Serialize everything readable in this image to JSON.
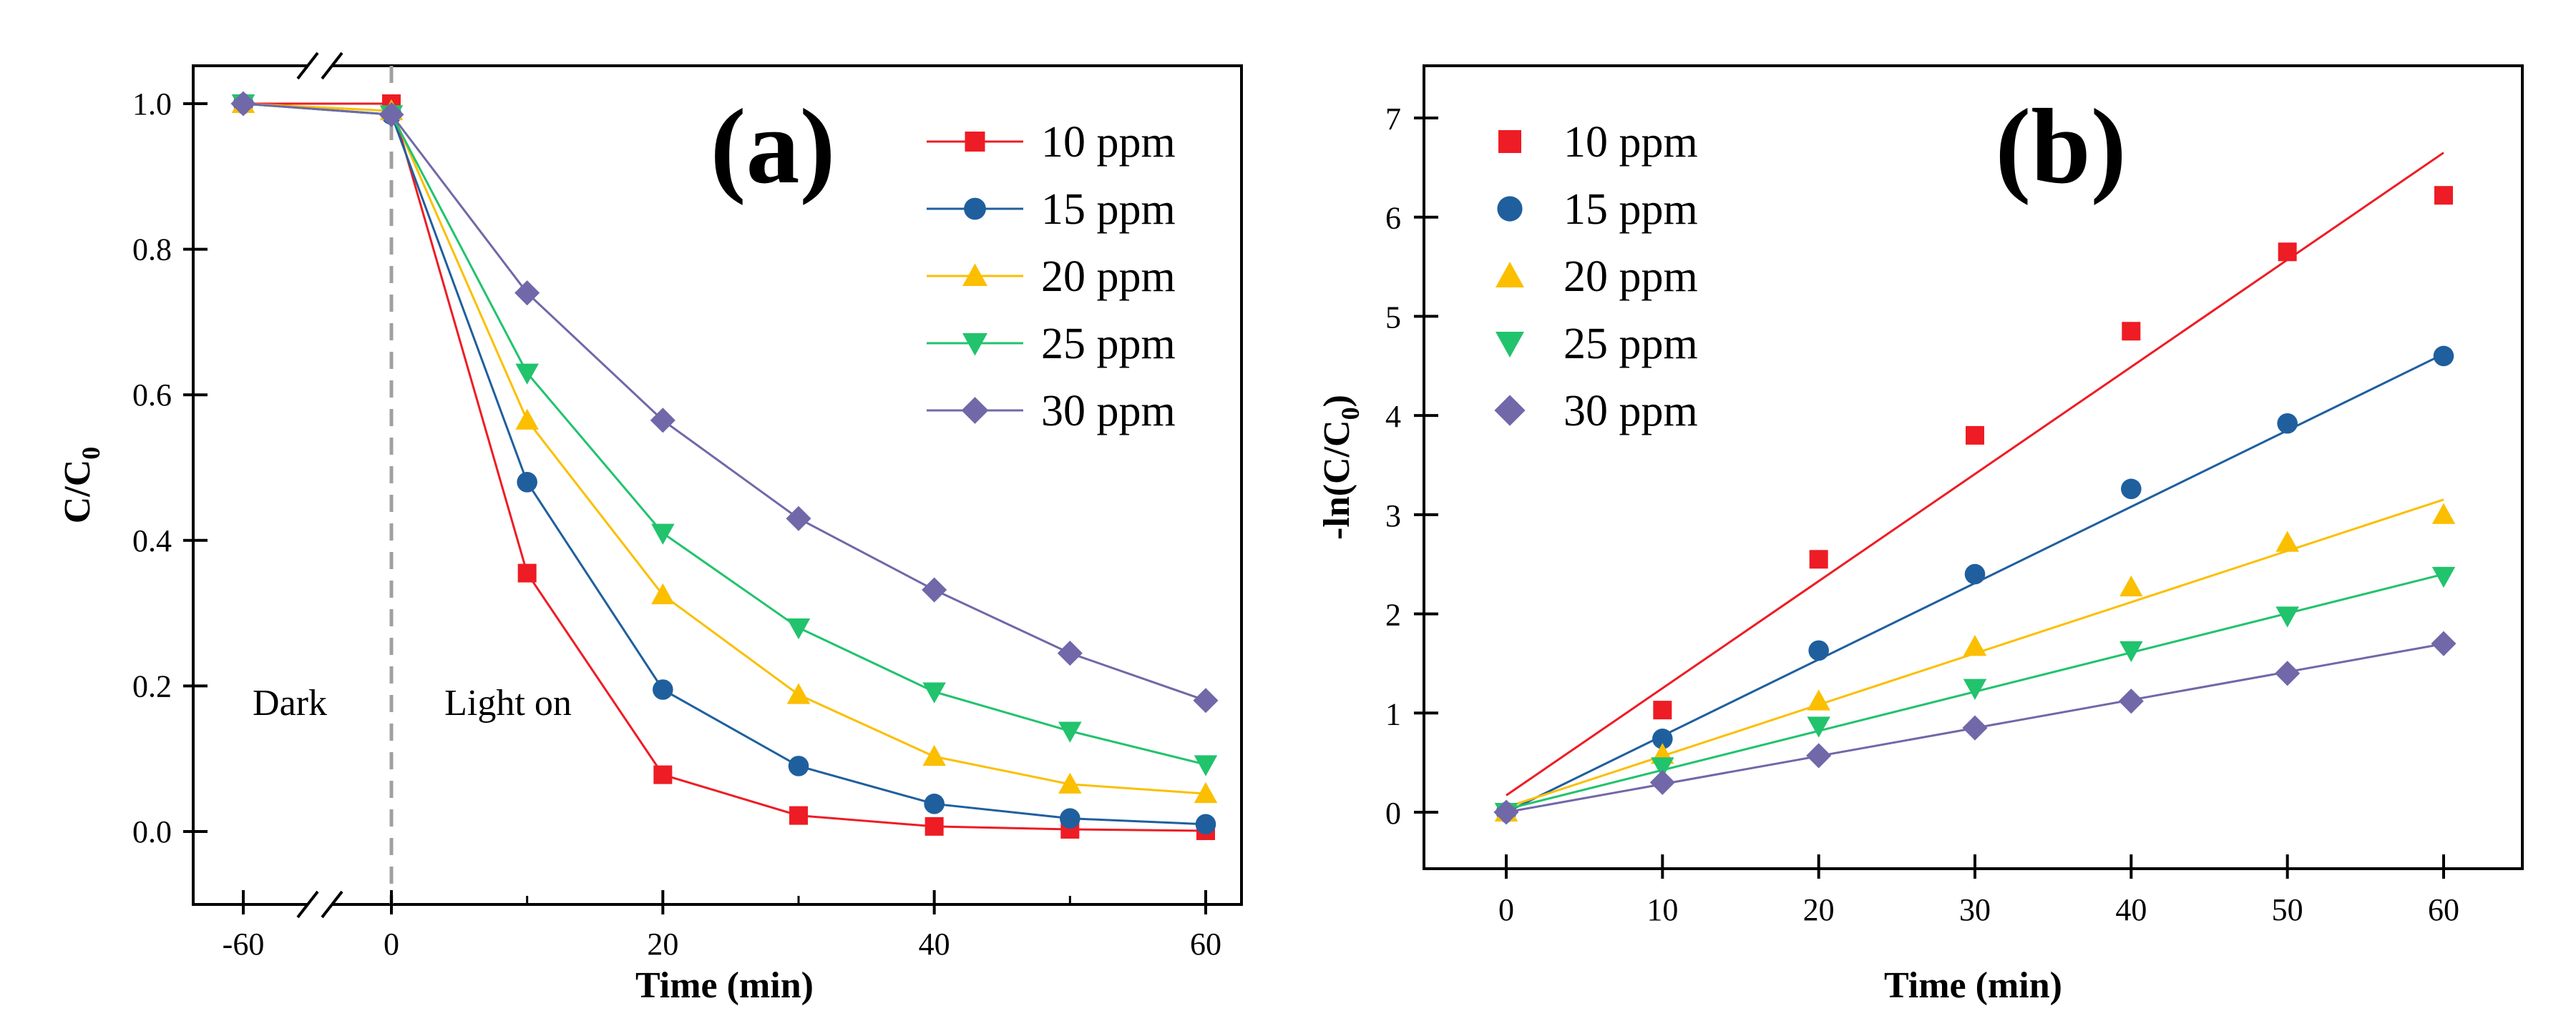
{
  "chart_data": [
    {
      "panel": "(a)",
      "type": "line",
      "xlabel": "Time (min)",
      "ylabel": "C/C0",
      "ylabel_main": "C/C",
      "ylabel_sub": "0",
      "x": [
        -60,
        0,
        10,
        20,
        30,
        40,
        50,
        60
      ],
      "x_ticks": [
        "-60",
        "0",
        "20",
        "40",
        "60"
      ],
      "y_ticks": [
        "0.0",
        "0.2",
        "0.4",
        "0.6",
        "0.8",
        "1.0"
      ],
      "ylim": [
        -0.05,
        1.05
      ],
      "broken_axis": true,
      "annotations": [
        "Dark",
        "Light on"
      ],
      "series": [
        {
          "name": "10 ppm",
          "color": "#ee1c24",
          "marker": "square",
          "values": [
            1.0,
            1.0,
            0.355,
            0.078,
            0.022,
            0.007,
            0.003,
            0.001
          ]
        },
        {
          "name": "15 ppm",
          "color": "#1f5f9e",
          "marker": "circle",
          "values": [
            1.0,
            0.985,
            0.48,
            0.195,
            0.09,
            0.038,
            0.018,
            0.01
          ]
        },
        {
          "name": "20 ppm",
          "color": "#fbbf00",
          "marker": "triangle-up",
          "values": [
            1.0,
            0.99,
            0.565,
            0.325,
            0.188,
            0.103,
            0.065,
            0.052
          ]
        },
        {
          "name": "25 ppm",
          "color": "#21c36d",
          "marker": "triangle-down",
          "values": [
            1.0,
            0.985,
            0.63,
            0.41,
            0.28,
            0.192,
            0.138,
            0.092
          ]
        },
        {
          "name": "30 ppm",
          "color": "#7068a8",
          "marker": "diamond",
          "values": [
            1.0,
            0.985,
            0.74,
            0.565,
            0.43,
            0.332,
            0.245,
            0.18
          ]
        }
      ]
    },
    {
      "panel": "(b)",
      "type": "scatter",
      "xlabel": "Time (min)",
      "ylabel": "-ln(C/C0)",
      "ylabel_main": "-ln(C/C",
      "ylabel_sub": "0",
      "ylabel_end": ")",
      "x": [
        0,
        10,
        20,
        30,
        40,
        50,
        60
      ],
      "x_ticks": [
        "0",
        "10",
        "20",
        "30",
        "40",
        "50",
        "60"
      ],
      "y_ticks": [
        "0",
        "1",
        "2",
        "3",
        "4",
        "5",
        "6",
        "7"
      ],
      "xlim": [
        -5,
        65
      ],
      "ylim": [
        -0.5,
        7.5
      ],
      "series": [
        {
          "name": "10 ppm",
          "color": "#ee1c24",
          "marker": "square",
          "values": [
            0.0,
            1.03,
            2.55,
            3.8,
            4.85,
            5.65,
            6.22
          ],
          "fit": [
            0.17,
            0.108
          ]
        },
        {
          "name": "15 ppm",
          "color": "#1f5f9e",
          "marker": "circle",
          "values": [
            0.0,
            0.74,
            1.63,
            2.4,
            3.26,
            3.92,
            4.6
          ],
          "fit": [
            0.0,
            0.077
          ]
        },
        {
          "name": "20 ppm",
          "color": "#fbbf00",
          "marker": "triangle-up",
          "values": [
            0.0,
            0.58,
            1.12,
            1.67,
            2.27,
            2.72,
            3.0
          ],
          "fit": [
            0.05,
            0.0517
          ]
        },
        {
          "name": "25 ppm",
          "color": "#21c36d",
          "marker": "triangle-down",
          "values": [
            0.0,
            0.46,
            0.87,
            1.25,
            1.63,
            1.98,
            2.38
          ],
          "fit": [
            0.03,
            0.0395
          ]
        },
        {
          "name": "30 ppm",
          "color": "#7068a8",
          "marker": "diamond",
          "values": [
            0.0,
            0.3,
            0.57,
            0.85,
            1.12,
            1.4,
            1.7
          ],
          "fit": [
            0.0,
            0.0283
          ]
        }
      ]
    }
  ]
}
